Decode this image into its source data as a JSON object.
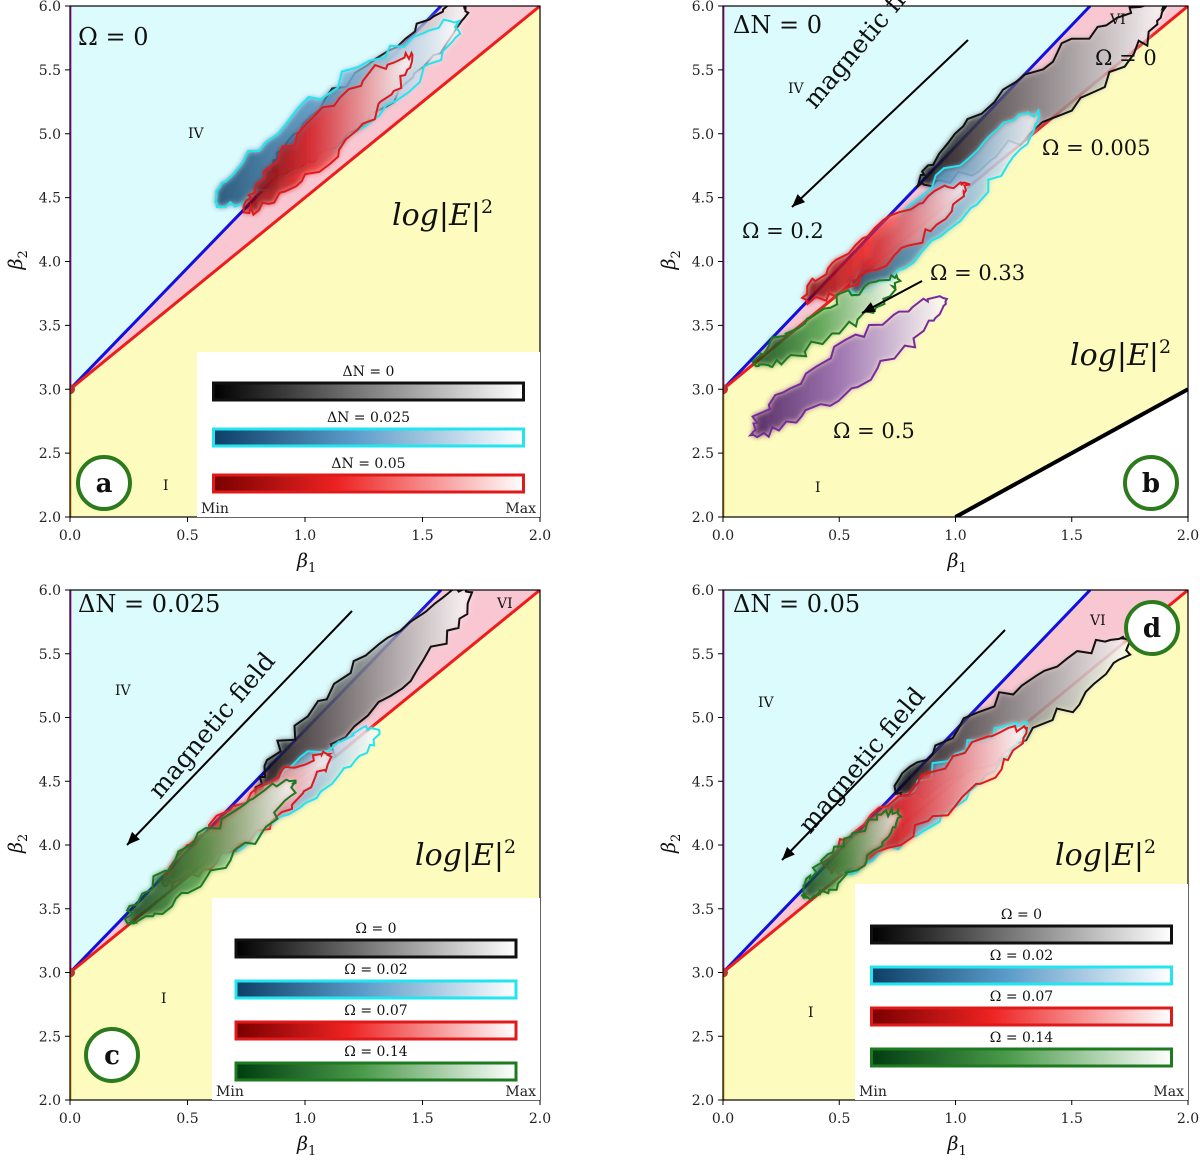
{
  "figure": {
    "colors": {
      "region_IV_fill": "#dcfbfd",
      "region_I_fill": "#fdfbbd",
      "region_VI_fill": "#f9c7d2",
      "boundary_blue": "#1010e0",
      "boundary_red": "#ee1c1c",
      "boundary_magenta": "#cc33cc",
      "badge_green": "#2b7a1c",
      "series_black": "#111111",
      "series_cyan": "#22e5f0",
      "series_red": "#e01a1a",
      "series_green": "#1e7a20",
      "series_purple": "#7a2a9a"
    },
    "colorbar_min": "Min",
    "colorbar_max": "Max",
    "field_label": "log|E|",
    "field_exponent": "2",
    "magnetic_label": "magnetic field",
    "region_I": "I",
    "region_IV": "IV",
    "region_VI": "VI"
  },
  "chart_data": [
    {
      "type": "heatmap",
      "panel_label": "a",
      "xlabel": "β1",
      "ylabel": "β2",
      "xlim": [
        0,
        2
      ],
      "ylim": [
        2,
        6
      ],
      "xticks": [
        "0.0",
        "0.5",
        "1.0",
        "1.5",
        "2.0"
      ],
      "yticks": [
        "2.0",
        "2.5",
        "3.0",
        "3.5",
        "4.0",
        "4.5",
        "5.0",
        "5.5",
        "6.0"
      ],
      "fixed_parameter": "Ω = 0",
      "region_labels": [
        "IV",
        "I"
      ],
      "series": [
        {
          "name": "ΔN = 0",
          "color": "#111111",
          "beta1_range": [
            0.87,
            1.68
          ],
          "beta2_range": [
            4.7,
            6.0
          ]
        },
        {
          "name": "ΔN = 0.025",
          "color": "#22e5f0",
          "beta1_range": [
            0.62,
            1.65
          ],
          "beta2_range": [
            4.45,
            5.85
          ]
        },
        {
          "name": "ΔN = 0.05",
          "color": "#e01a1a",
          "beta1_range": [
            0.75,
            1.45
          ],
          "beta2_range": [
            4.4,
            5.6
          ]
        }
      ]
    },
    {
      "type": "heatmap",
      "panel_label": "b",
      "xlabel": "β1",
      "ylabel": "β2",
      "xlim": [
        0,
        2
      ],
      "ylim": [
        2,
        6
      ],
      "xticks": [
        "0.0",
        "0.5",
        "1.0",
        "1.5",
        "2.0"
      ],
      "yticks": [
        "2.0",
        "2.5",
        "3.0",
        "3.5",
        "4.0",
        "4.5",
        "5.0",
        "5.5",
        "6.0"
      ],
      "fixed_parameter": "ΔN = 0",
      "region_labels": [
        "IV",
        "VI",
        "I"
      ],
      "series": [
        {
          "name": "Ω = 0",
          "color": "#111111",
          "beta1_range": [
            0.85,
            1.9
          ],
          "beta2_range": [
            4.6,
            6.0
          ]
        },
        {
          "name": "Ω = 0.005",
          "color": "#22e5f0",
          "beta1_range": [
            0.55,
            1.35
          ],
          "beta2_range": [
            3.75,
            5.15
          ]
        },
        {
          "name": "Ω = 0.2",
          "color": "#e01a1a",
          "beta1_range": [
            0.35,
            1.05
          ],
          "beta2_range": [
            3.7,
            4.6
          ]
        },
        {
          "name": "Ω = 0.33",
          "color": "#1e7a20",
          "beta1_range": [
            0.15,
            0.75
          ],
          "beta2_range": [
            3.2,
            3.85
          ]
        },
        {
          "name": "Ω = 0.5",
          "color": "#7a2a9a",
          "beta1_range": [
            0.12,
            0.95
          ],
          "beta2_range": [
            2.65,
            3.7
          ]
        }
      ]
    },
    {
      "type": "heatmap",
      "panel_label": "c",
      "xlabel": "β1",
      "ylabel": "β2",
      "xlim": [
        0,
        2
      ],
      "ylim": [
        2,
        6
      ],
      "xticks": [
        "0.0",
        "0.5",
        "1.0",
        "1.5",
        "2.0"
      ],
      "yticks": [
        "2.0",
        "2.5",
        "3.0",
        "3.5",
        "4.0",
        "4.5",
        "5.0",
        "5.5",
        "6.0"
      ],
      "fixed_parameter": "ΔN = 0.025",
      "region_labels": [
        "IV",
        "VI",
        "I"
      ],
      "series": [
        {
          "name": "Ω = 0",
          "color": "#111111",
          "beta1_range": [
            0.8,
            1.7
          ],
          "beta2_range": [
            4.4,
            6.0
          ]
        },
        {
          "name": "Ω = 0.02",
          "color": "#22e5f0",
          "beta1_range": [
            0.55,
            1.3
          ],
          "beta2_range": [
            3.9,
            4.9
          ]
        },
        {
          "name": "Ω = 0.07",
          "color": "#e01a1a",
          "beta1_range": [
            0.4,
            1.1
          ],
          "beta2_range": [
            3.7,
            4.7
          ]
        },
        {
          "name": "Ω = 0.14",
          "color": "#1e7a20",
          "beta1_range": [
            0.25,
            0.95
          ],
          "beta2_range": [
            3.4,
            4.5
          ]
        }
      ]
    },
    {
      "type": "heatmap",
      "panel_label": "d",
      "xlabel": "β1",
      "ylabel": "β2",
      "xlim": [
        0,
        2
      ],
      "ylim": [
        2,
        6
      ],
      "xticks": [
        "0.0",
        "0.5",
        "1.0",
        "1.5",
        "2.0"
      ],
      "yticks": [
        "2.0",
        "2.5",
        "3.0",
        "3.5",
        "4.0",
        "4.5",
        "5.0",
        "5.5",
        "6.0"
      ],
      "fixed_parameter": "ΔN = 0.05",
      "region_labels": [
        "IV",
        "VI",
        "I"
      ],
      "series": [
        {
          "name": "Ω = 0",
          "color": "#111111",
          "beta1_range": [
            0.75,
            1.75
          ],
          "beta2_range": [
            4.4,
            5.6
          ]
        },
        {
          "name": "Ω = 0.02",
          "color": "#22e5f0",
          "beta1_range": [
            0.5,
            1.3
          ],
          "beta2_range": [
            3.8,
            4.95
          ]
        },
        {
          "name": "Ω = 0.07",
          "color": "#e01a1a",
          "beta1_range": [
            0.45,
            1.3
          ],
          "beta2_range": [
            3.8,
            4.9
          ]
        },
        {
          "name": "Ω = 0.14",
          "color": "#1e7a20",
          "beta1_range": [
            0.35,
            0.75
          ],
          "beta2_range": [
            3.6,
            4.25
          ]
        }
      ]
    }
  ]
}
